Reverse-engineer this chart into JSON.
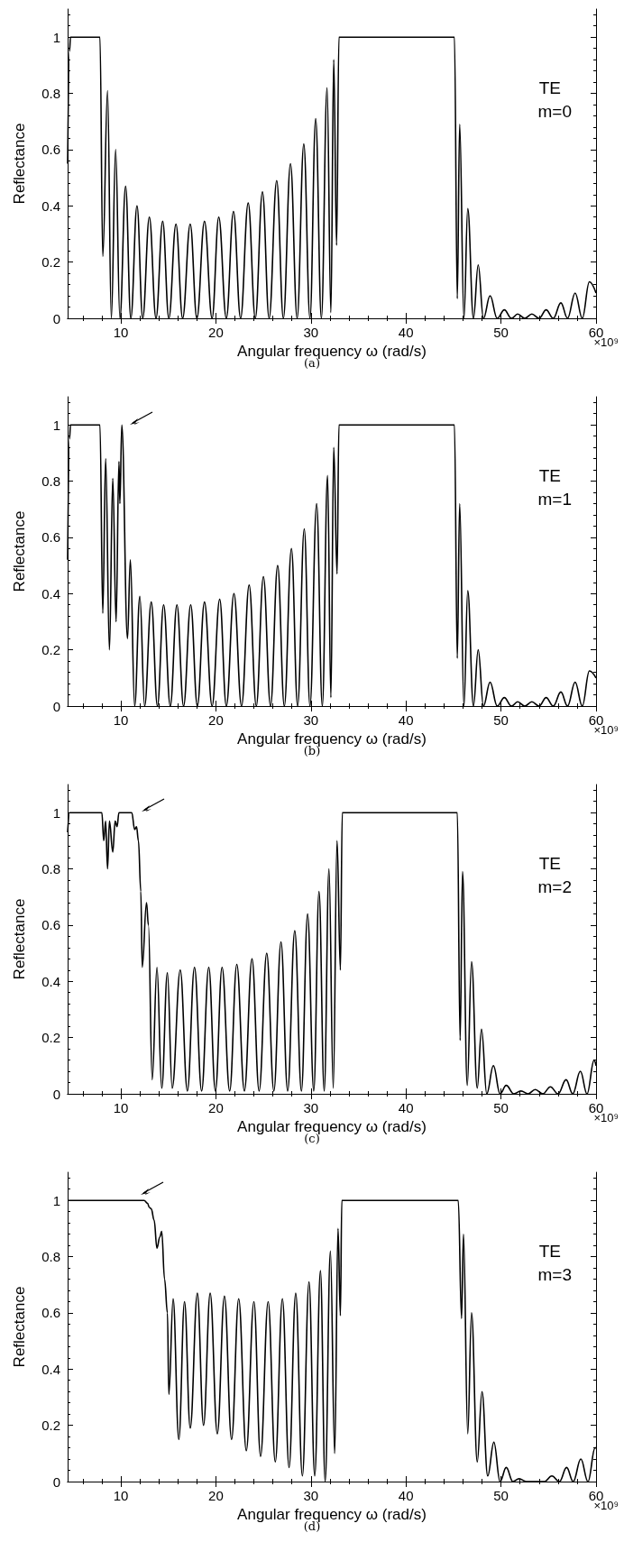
{
  "chart_data": [
    {
      "type": "line",
      "xlabel": "Angular frequency ω (rad/s)",
      "ylabel": "Reflectance",
      "color": "#000000",
      "xlim": [
        4.4,
        60
      ],
      "xticks": [
        10,
        20,
        30,
        40,
        50,
        60
      ],
      "ylim": [
        0,
        1.1
      ],
      "yticks": [
        0,
        0.2,
        0.4,
        0.6,
        0.8,
        1
      ],
      "grid": false,
      "annotations": [
        "TE",
        "m=0",
        "×10⁹",
        "(a)"
      ],
      "x": [
        4.4,
        4.6,
        4.7,
        7.8,
        8.1,
        8.6,
        9.0,
        9.45,
        9.9,
        10.5,
        11.05,
        11.7,
        12.3,
        13.0,
        13.7,
        14.4,
        15.05,
        15.8,
        16.5,
        17.3,
        18.0,
        18.8,
        19.6,
        20.3,
        21.1,
        21.85,
        22.6,
        23.4,
        24.15,
        24.9,
        25.6,
        26.4,
        27.1,
        27.85,
        28.55,
        29.25,
        29.9,
        30.5,
        31.1,
        31.7,
        32.1,
        32.4,
        32.7,
        32.95,
        45.1,
        45.4,
        45.65,
        46.1,
        46.5,
        47.1,
        47.6,
        48.15,
        48.85,
        49.6,
        50.35,
        51.1,
        51.75,
        52.5,
        53.25,
        54.0,
        54.75,
        55.5,
        56.3,
        57.0,
        57.8,
        58.55,
        59.3,
        60
      ],
      "values": [
        0.55,
        0.95,
        1,
        1,
        0.22,
        0.81,
        0,
        0.6,
        0,
        0.47,
        0,
        0.4,
        0,
        0.36,
        0,
        0.345,
        0,
        0.335,
        0,
        0.335,
        0,
        0.345,
        0,
        0.36,
        0,
        0.38,
        0,
        0.41,
        0,
        0.45,
        0,
        0.49,
        0,
        0.55,
        0,
        0.62,
        0,
        0.71,
        0,
        0.82,
        0.02,
        0.92,
        0.26,
        1,
        1,
        0.07,
        0.69,
        0,
        0.39,
        0,
        0.19,
        0,
        0.08,
        0,
        0.03,
        0,
        0.015,
        0,
        0.015,
        0,
        0.03,
        0,
        0.055,
        0,
        0.09,
        0,
        0.13,
        0.09
      ]
    },
    {
      "type": "line",
      "xlabel": "Angular frequency ω (rad/s)",
      "ylabel": "Reflectance",
      "color": "#000000",
      "xlim": [
        4.4,
        60
      ],
      "xticks": [
        10,
        20,
        30,
        40,
        50,
        60
      ],
      "ylim": [
        0,
        1.1
      ],
      "yticks": [
        0,
        0.2,
        0.4,
        0.6,
        0.8,
        1
      ],
      "grid": false,
      "annotations": [
        "TE",
        "m=1",
        "×10⁹",
        "(b)"
      ],
      "x": [
        4.4,
        4.6,
        4.7,
        7.8,
        8.1,
        8.4,
        8.8,
        9.15,
        9.5,
        9.8,
        9.9,
        10.1,
        10.7,
        11.0,
        11.45,
        12.0,
        12.5,
        13.2,
        13.85,
        14.5,
        15.2,
        15.9,
        16.6,
        17.35,
        18.05,
        18.8,
        19.6,
        20.4,
        21.1,
        21.9,
        22.7,
        23.5,
        24.25,
        25.0,
        25.75,
        26.5,
        27.2,
        27.95,
        28.6,
        29.3,
        29.9,
        30.6,
        31.2,
        31.75,
        32.1,
        32.4,
        32.75,
        32.95,
        45.1,
        45.4,
        45.65,
        46.1,
        46.5,
        47.1,
        47.6,
        48.15,
        48.85,
        49.6,
        50.35,
        51.1,
        51.75,
        52.5,
        53.25,
        54.0,
        54.75,
        55.5,
        56.3,
        57.0,
        57.8,
        58.55,
        59.3,
        60
      ],
      "values": [
        0.52,
        0.95,
        1,
        1,
        0.33,
        0.88,
        0.2,
        0.81,
        0.3,
        0.87,
        0.72,
        1,
        0.24,
        0.52,
        0,
        0.39,
        0,
        0.37,
        0,
        0.36,
        0,
        0.36,
        0,
        0.36,
        0,
        0.37,
        0,
        0.38,
        0,
        0.4,
        0,
        0.43,
        0,
        0.46,
        0,
        0.5,
        0,
        0.56,
        0,
        0.63,
        0,
        0.72,
        0,
        0.82,
        0.03,
        0.92,
        0.47,
        1,
        1,
        0.17,
        0.72,
        0,
        0.41,
        0,
        0.2,
        0,
        0.085,
        0,
        0.03,
        0,
        0.015,
        0,
        0.015,
        0,
        0.03,
        0,
        0.05,
        0,
        0.085,
        0,
        0.125,
        0.1
      ]
    },
    {
      "type": "line",
      "xlabel": "Angular frequency ω (rad/s)",
      "ylabel": "Reflectance",
      "color": "#000000",
      "xlim": [
        4.4,
        60
      ],
      "xticks": [
        10,
        20,
        30,
        40,
        50,
        60
      ],
      "ylim": [
        0,
        1.1
      ],
      "yticks": [
        0,
        0.2,
        0.4,
        0.6,
        0.8,
        1
      ],
      "grid": false,
      "annotations": [
        "TE",
        "m=2",
        "×10⁹",
        "(c)"
      ],
      "x": [
        4.4,
        4.6,
        8.0,
        8.2,
        8.4,
        8.6,
        8.8,
        9.15,
        9.4,
        9.6,
        9.8,
        11.15,
        11.45,
        11.65,
        11.85,
        12.1,
        12.25,
        12.7,
        12.9,
        13.3,
        13.8,
        14.3,
        14.9,
        15.4,
        16.25,
        17.0,
        17.75,
        18.5,
        19.25,
        19.95,
        20.65,
        21.45,
        22.2,
        23.0,
        23.8,
        24.55,
        25.35,
        26.1,
        26.85,
        27.55,
        28.3,
        29.0,
        29.65,
        30.3,
        30.85,
        31.4,
        31.9,
        32.35,
        32.75,
        33.1,
        33.3,
        45.4,
        45.7,
        45.95,
        46.45,
        46.9,
        47.5,
        47.95,
        48.5,
        49.2,
        49.9,
        50.55,
        51.35,
        52.1,
        52.85,
        53.6,
        54.4,
        55.2,
        56.0,
        56.85,
        57.55,
        58.35,
        59.05,
        59.8,
        60
      ],
      "values": [
        0.93,
        1,
        1,
        0.9,
        0.97,
        0.8,
        0.97,
        0.86,
        0.97,
        0.95,
        1,
        1,
        0.94,
        0.95,
        0.9,
        0.72,
        0.45,
        0.68,
        0.6,
        0.05,
        0.45,
        0.02,
        0.43,
        0.02,
        0.44,
        0.01,
        0.45,
        0.01,
        0.45,
        0.01,
        0.45,
        0.01,
        0.46,
        0.01,
        0.48,
        0.01,
        0.5,
        0.01,
        0.54,
        0.01,
        0.58,
        0.01,
        0.64,
        0.01,
        0.72,
        0.01,
        0.8,
        0.02,
        0.9,
        0.44,
        1,
        1,
        0.19,
        0.79,
        0.03,
        0.47,
        0.02,
        0.23,
        0,
        0.1,
        0,
        0.03,
        0,
        0.01,
        0,
        0.015,
        0,
        0.025,
        0,
        0.05,
        0,
        0.08,
        0,
        0.12,
        0.1
      ]
    },
    {
      "type": "line",
      "xlabel": "Angular frequency ω (rad/s)",
      "ylabel": "Reflectance",
      "color": "#000000",
      "xlim": [
        4.4,
        60
      ],
      "xticks": [
        10,
        20,
        30,
        40,
        50,
        60
      ],
      "ylim": [
        0,
        1.1
      ],
      "yticks": [
        0,
        0.2,
        0.4,
        0.6,
        0.8,
        1
      ],
      "grid": false,
      "annotations": [
        "TE",
        "m=3",
        "×10⁹",
        "(d)"
      ],
      "x": [
        4.4,
        12.45,
        12.8,
        13.0,
        13.2,
        13.5,
        13.8,
        14.1,
        14.3,
        14.6,
        14.9,
        15.05,
        15.5,
        16.1,
        16.7,
        17.3,
        18.05,
        18.7,
        19.4,
        20.15,
        20.9,
        21.65,
        22.4,
        23.2,
        24.0,
        24.7,
        25.5,
        26.25,
        27.0,
        27.7,
        28.4,
        29.1,
        29.8,
        30.4,
        31.0,
        31.5,
        32.05,
        32.5,
        32.85,
        33.1,
        33.25,
        45.5,
        45.85,
        46.05,
        46.5,
        46.9,
        47.5,
        48.0,
        48.6,
        49.25,
        49.9,
        50.55,
        51.25,
        51.9,
        52.65,
        54.55,
        55.35,
        56.15,
        56.9,
        57.6,
        58.4,
        59.15,
        59.9,
        60
      ],
      "values": [
        1,
        1,
        0.99,
        0.975,
        0.97,
        0.93,
        0.83,
        0.87,
        0.89,
        0.72,
        0.6,
        0.31,
        0.65,
        0.15,
        0.64,
        0.19,
        0.67,
        0.2,
        0.67,
        0.17,
        0.66,
        0.15,
        0.65,
        0.11,
        0.64,
        0.09,
        0.64,
        0.07,
        0.65,
        0.05,
        0.67,
        0.02,
        0.71,
        0.02,
        0.75,
        0,
        0.82,
        0.1,
        0.9,
        0.59,
        1,
        1,
        0.58,
        0.88,
        0.17,
        0.6,
        0.07,
        0.32,
        0.02,
        0.14,
        0,
        0.05,
        0,
        0.01,
        0,
        0,
        0.02,
        0,
        0.05,
        0,
        0.08,
        0,
        0.12,
        0.12
      ]
    }
  ]
}
